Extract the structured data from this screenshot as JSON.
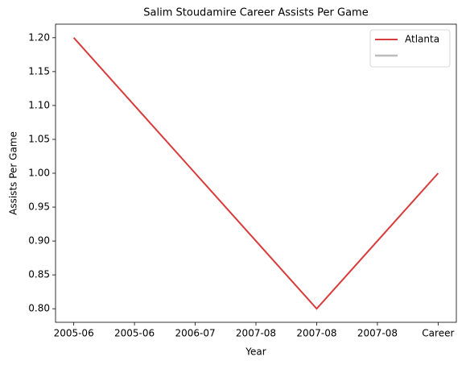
{
  "chart_data": {
    "type": "line",
    "title": "Salim Stoudamire Career Assists Per Game",
    "xlabel": "Year",
    "ylabel": "Assists Per Game",
    "categories": [
      "2005-06",
      "2005-06",
      "2006-07",
      "2007-08",
      "2007-08",
      "2007-08",
      "Career"
    ],
    "series": [
      {
        "name": "Atlanta",
        "color": "#d93b3b",
        "values": [
          1.2,
          1.1,
          1.0,
          0.9,
          0.8,
          0.9,
          1.0
        ]
      }
    ],
    "ylim": [
      0.78,
      1.22
    ],
    "yticks": [
      {
        "value": 0.8,
        "label": "0.80"
      },
      0.85,
      {
        "value": 0.9,
        "label": "0.90"
      },
      0.95,
      {
        "value": 1.0,
        "label": "1.00"
      },
      1.05,
      {
        "value": 1.1,
        "label": "1.10"
      },
      1.15,
      {
        "value": 1.2,
        "label": "1.20"
      }
    ],
    "legend": "upper right",
    "grid": false
  }
}
